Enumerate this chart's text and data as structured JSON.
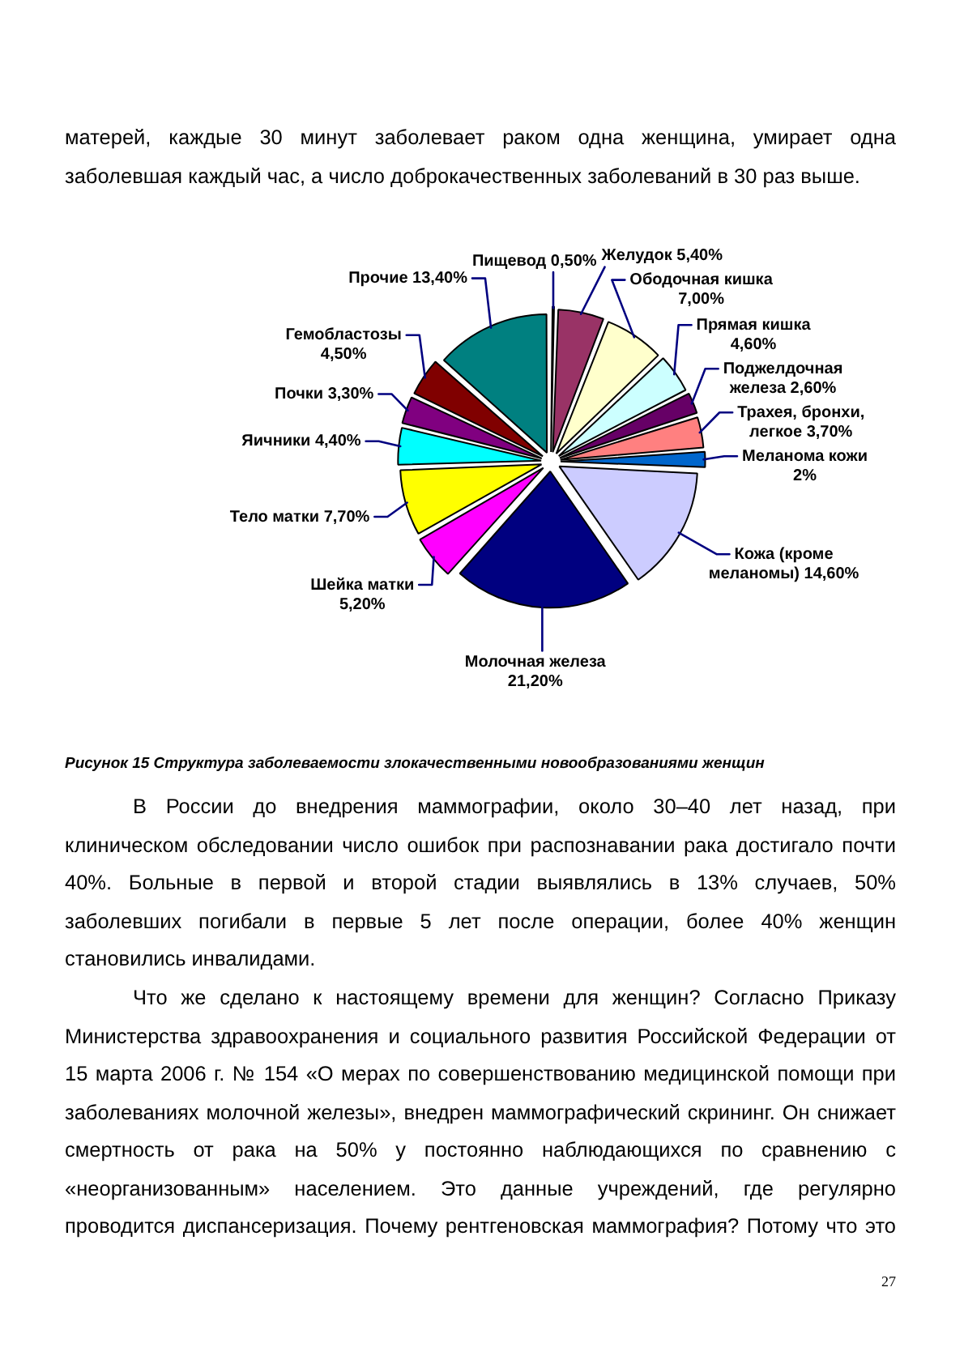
{
  "chart_data": {
    "type": "pie",
    "title": "Рисунок 15 Структура заболеваемости злокачественными новообразованиями женщин",
    "categories": [
      "Пищевод",
      "Желудок",
      "Ободочная кишка",
      "Прямая кишка",
      "Поджелдочная железа",
      "Трахея, бронхи, легкое",
      "Меланома кожи",
      "Кожа (кроме меланомы)",
      "Молочная железа",
      "Шейка матки",
      "Тело матки",
      "Яичники",
      "Почки",
      "Гемобластозы",
      "Прочие"
    ],
    "values": [
      0.5,
      5.4,
      7.0,
      4.6,
      2.6,
      3.7,
      2,
      14.6,
      21.2,
      5.2,
      7.7,
      4.4,
      3.3,
      4.5,
      13.4
    ],
    "value_labels": [
      "0,50%",
      "5,40%",
      "7,00%",
      "4,60%",
      "2,60%",
      "3,70%",
      "2%",
      "14,60%",
      "21,20%",
      "5,20%",
      "7,70%",
      "4,40%",
      "3,30%",
      "4,50%",
      "13,40%"
    ],
    "colors": [
      "#9999ff",
      "#993366",
      "#ffffcc",
      "#ccffff",
      "#660066",
      "#ff8080",
      "#0066cc",
      "#ccccff",
      "#000080",
      "#ff00ff",
      "#ffff00",
      "#00ffff",
      "#800080",
      "#800000",
      "#008080"
    ],
    "annotations": [
      "матерей, каждые 30 минут заболевает раком одна женщина, умирает одна заболевшая каждый час, а число доброкачественных заболеваний в 30 раз выше.",
      "В России до внедрения маммографии, около 30–40 лет назад, при клиническом обследовании число ошибок при распознавании рака достигало почти 40%. Больные в первой и второй стадии выявлялись в 13% случаев, 50% заболевших погибали в первые 5 лет после операции, более 40% женщин становились инвалидами.",
      "Что же сделано к настоящему времени для женщин? Согласно Приказу Министерства здравоохранения и социального развития Российской Федерации от 15 марта 2006 г. № 154 «О мерах по совершенствованию медицинской помощи при заболеваниях молочной железы», внедрен маммографический скрининг. Он снижает смертность от рака на 50% у постоянно наблюдающихся по сравнению с «неорганизованным» населением. Это данные учреждений, где регулярно проводится диспансеризация. Почему рентгеновская маммография? Потому что это",
      "27"
    ]
  }
}
